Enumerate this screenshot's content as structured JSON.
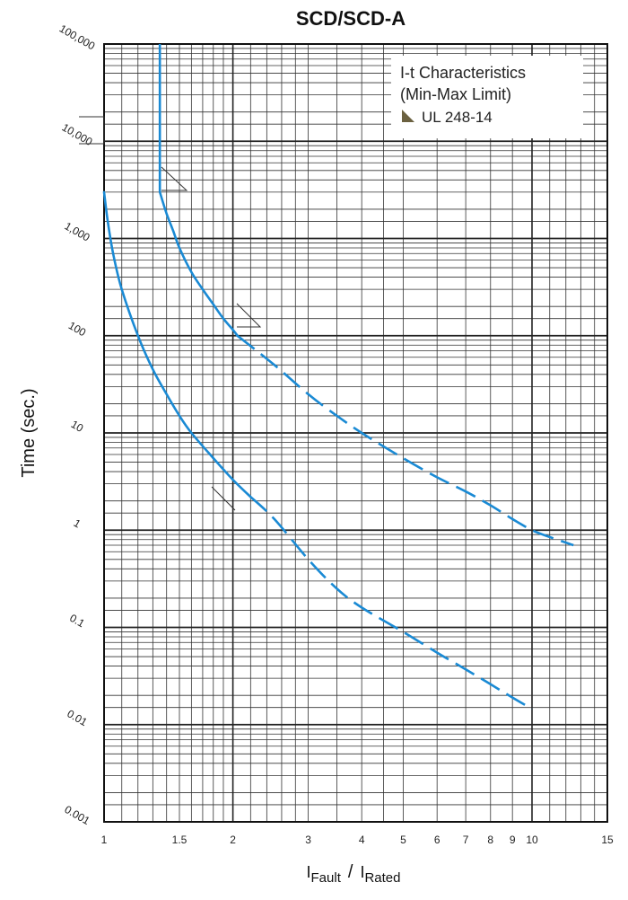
{
  "chart_data": {
    "type": "line",
    "title": "SCD/SCD-A",
    "ylabel": "Time (sec.)",
    "xlabel_parts": {
      "main1": "I",
      "sub1": "Fault",
      "slash": "/",
      "main2": "I",
      "sub2": "Rated"
    },
    "x_scale": "log",
    "y_scale": "log",
    "xlim": [
      1,
      15
    ],
    "ylim": [
      0.001,
      100000
    ],
    "x_ticks": [
      {
        "value": 1,
        "label": "1"
      },
      {
        "value": 1.5,
        "label": "1.5"
      },
      {
        "value": 2,
        "label": "2"
      },
      {
        "value": 3,
        "label": "3"
      },
      {
        "value": 4,
        "label": "4"
      },
      {
        "value": 5,
        "label": "5"
      },
      {
        "value": 6,
        "label": "6"
      },
      {
        "value": 7,
        "label": "7"
      },
      {
        "value": 8,
        "label": "8"
      },
      {
        "value": 9,
        "label": "9"
      },
      {
        "value": 10,
        "label": "10"
      },
      {
        "value": 15,
        "label": "15"
      }
    ],
    "y_ticks": [
      {
        "value": 0.001,
        "label": "0.001"
      },
      {
        "value": 0.01,
        "label": "0.01"
      },
      {
        "value": 0.1,
        "label": "0.1"
      },
      {
        "value": 1,
        "label": "1"
      },
      {
        "value": 10,
        "label": "10"
      },
      {
        "value": 100,
        "label": "100"
      },
      {
        "value": 1000,
        "label": "1,000"
      },
      {
        "value": 10000,
        "label": "10,000"
      },
      {
        "value": 100000,
        "label": "100,000"
      }
    ],
    "legend": {
      "placement": "top-right",
      "line1": "I-t Characteristics",
      "line2": "(Min-Max Limit)",
      "line3": "UL 248-14"
    },
    "grid": true,
    "colors": {
      "curve": "#1a8ad4",
      "grid_major": "#222222",
      "grid_minor": "#333333",
      "legend_marker": "#6b6140"
    },
    "series": [
      {
        "role": "max-limit",
        "solid": [
          {
            "x": 1.35,
            "y": 100000
          },
          {
            "x": 1.35,
            "y": 3000
          },
          {
            "x": 1.4,
            "y": 1800
          },
          {
            "x": 1.45,
            "y": 1200
          },
          {
            "x": 1.5,
            "y": 800
          },
          {
            "x": 1.6,
            "y": 450
          },
          {
            "x": 1.7,
            "y": 300
          },
          {
            "x": 1.8,
            "y": 210
          },
          {
            "x": 1.9,
            "y": 150
          },
          {
            "x": 2.0,
            "y": 115
          },
          {
            "x": 2.05,
            "y": 100
          }
        ],
        "dashed": [
          {
            "x": 2.05,
            "y": 100
          },
          {
            "x": 2.5,
            "y": 50
          },
          {
            "x": 3.0,
            "y": 25
          },
          {
            "x": 3.5,
            "y": 15
          },
          {
            "x": 4.0,
            "y": 10
          },
          {
            "x": 5.0,
            "y": 5.5
          },
          {
            "x": 6.0,
            "y": 3.5
          },
          {
            "x": 7.0,
            "y": 2.5
          },
          {
            "x": 8.0,
            "y": 1.8
          },
          {
            "x": 9.0,
            "y": 1.3
          },
          {
            "x": 10.0,
            "y": 1.0
          },
          {
            "x": 11.0,
            "y": 0.85
          },
          {
            "x": 12.5,
            "y": 0.7
          }
        ]
      },
      {
        "role": "min-limit",
        "solid": [
          {
            "x": 1.0,
            "y": 3000
          },
          {
            "x": 1.02,
            "y": 1500
          },
          {
            "x": 1.05,
            "y": 700
          },
          {
            "x": 1.1,
            "y": 300
          },
          {
            "x": 1.2,
            "y": 100
          },
          {
            "x": 1.3,
            "y": 45
          },
          {
            "x": 1.4,
            "y": 25
          },
          {
            "x": 1.5,
            "y": 15
          },
          {
            "x": 1.6,
            "y": 10
          },
          {
            "x": 1.8,
            "y": 5.5
          },
          {
            "x": 2.0,
            "y": 3.3
          },
          {
            "x": 2.2,
            "y": 2.2
          }
        ],
        "dashed": [
          {
            "x": 2.2,
            "y": 2.2
          },
          {
            "x": 2.5,
            "y": 1.3
          },
          {
            "x": 3.0,
            "y": 0.5
          },
          {
            "x": 3.5,
            "y": 0.25
          },
          {
            "x": 4.0,
            "y": 0.16
          },
          {
            "x": 5.0,
            "y": 0.09
          },
          {
            "x": 6.0,
            "y": 0.055
          },
          {
            "x": 7.0,
            "y": 0.037
          },
          {
            "x": 8.0,
            "y": 0.026
          },
          {
            "x": 9.0,
            "y": 0.019
          },
          {
            "x": 10.0,
            "y": 0.0145
          }
        ]
      }
    ]
  }
}
